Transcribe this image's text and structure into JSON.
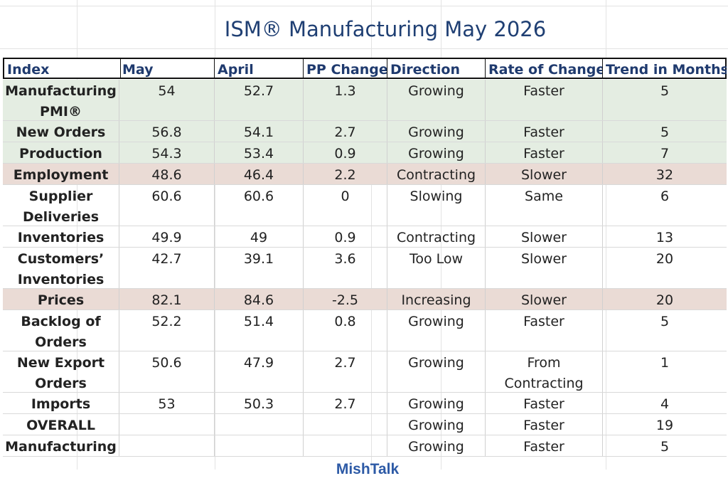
{
  "title": "ISM® Manufacturing May 2026",
  "footer": "MishTalk",
  "chart_data": {
    "type": "table",
    "title": "ISM® Manufacturing May 2026",
    "columns": [
      "Index",
      "May",
      "April",
      "PP Change",
      "Direction",
      "Rate of Change",
      "Trend in Months"
    ],
    "rows": [
      {
        "cells": [
          "Manufacturing PMI®",
          "54",
          "52.7",
          "1.3",
          "Growing",
          "Faster",
          "5"
        ],
        "shade": "green"
      },
      {
        "cells": [
          "New Orders",
          "56.8",
          "54.1",
          "2.7",
          "Growing",
          "Faster",
          "5"
        ],
        "shade": "green"
      },
      {
        "cells": [
          "Production",
          "54.3",
          "53.4",
          "0.9",
          "Growing",
          "Faster",
          "7"
        ],
        "shade": "green"
      },
      {
        "cells": [
          "Employment",
          "48.6",
          "46.4",
          "2.2",
          "Contracting",
          "Slower",
          "32"
        ],
        "shade": "pink"
      },
      {
        "cells": [
          "Supplier Deliveries",
          "60.6",
          "60.6",
          "0",
          "Slowing",
          "Same",
          "6"
        ],
        "shade": "none"
      },
      {
        "cells": [
          "Inventories",
          "49.9",
          "49",
          "0.9",
          "Contracting",
          "Slower",
          "13"
        ],
        "shade": "none"
      },
      {
        "cells": [
          "Customers’ Inventories",
          "42.7",
          "39.1",
          "3.6",
          "Too Low",
          "Slower",
          "20"
        ],
        "shade": "none"
      },
      {
        "cells": [
          "Prices",
          "82.1",
          "84.6",
          "-2.5",
          "Increasing",
          "Slower",
          "20"
        ],
        "shade": "pink"
      },
      {
        "cells": [
          "Backlog of Orders",
          "52.2",
          "51.4",
          "0.8",
          "Growing",
          "Faster",
          "5"
        ],
        "shade": "none"
      },
      {
        "cells": [
          "New Export Orders",
          "50.6",
          "47.9",
          "2.7",
          "Growing",
          "From Contracting",
          "1"
        ],
        "shade": "none"
      },
      {
        "cells": [
          "Imports",
          "53",
          "50.3",
          "2.7",
          "Growing",
          "Faster",
          "4"
        ],
        "shade": "none"
      },
      {
        "cells": [
          "OVERALL",
          "",
          "",
          "",
          "Growing",
          "Faster",
          "19"
        ],
        "shade": "none"
      },
      {
        "cells": [
          "Manufacturing",
          "",
          "",
          "",
          "Growing",
          "Faster",
          "5"
        ],
        "shade": "none"
      }
    ]
  }
}
